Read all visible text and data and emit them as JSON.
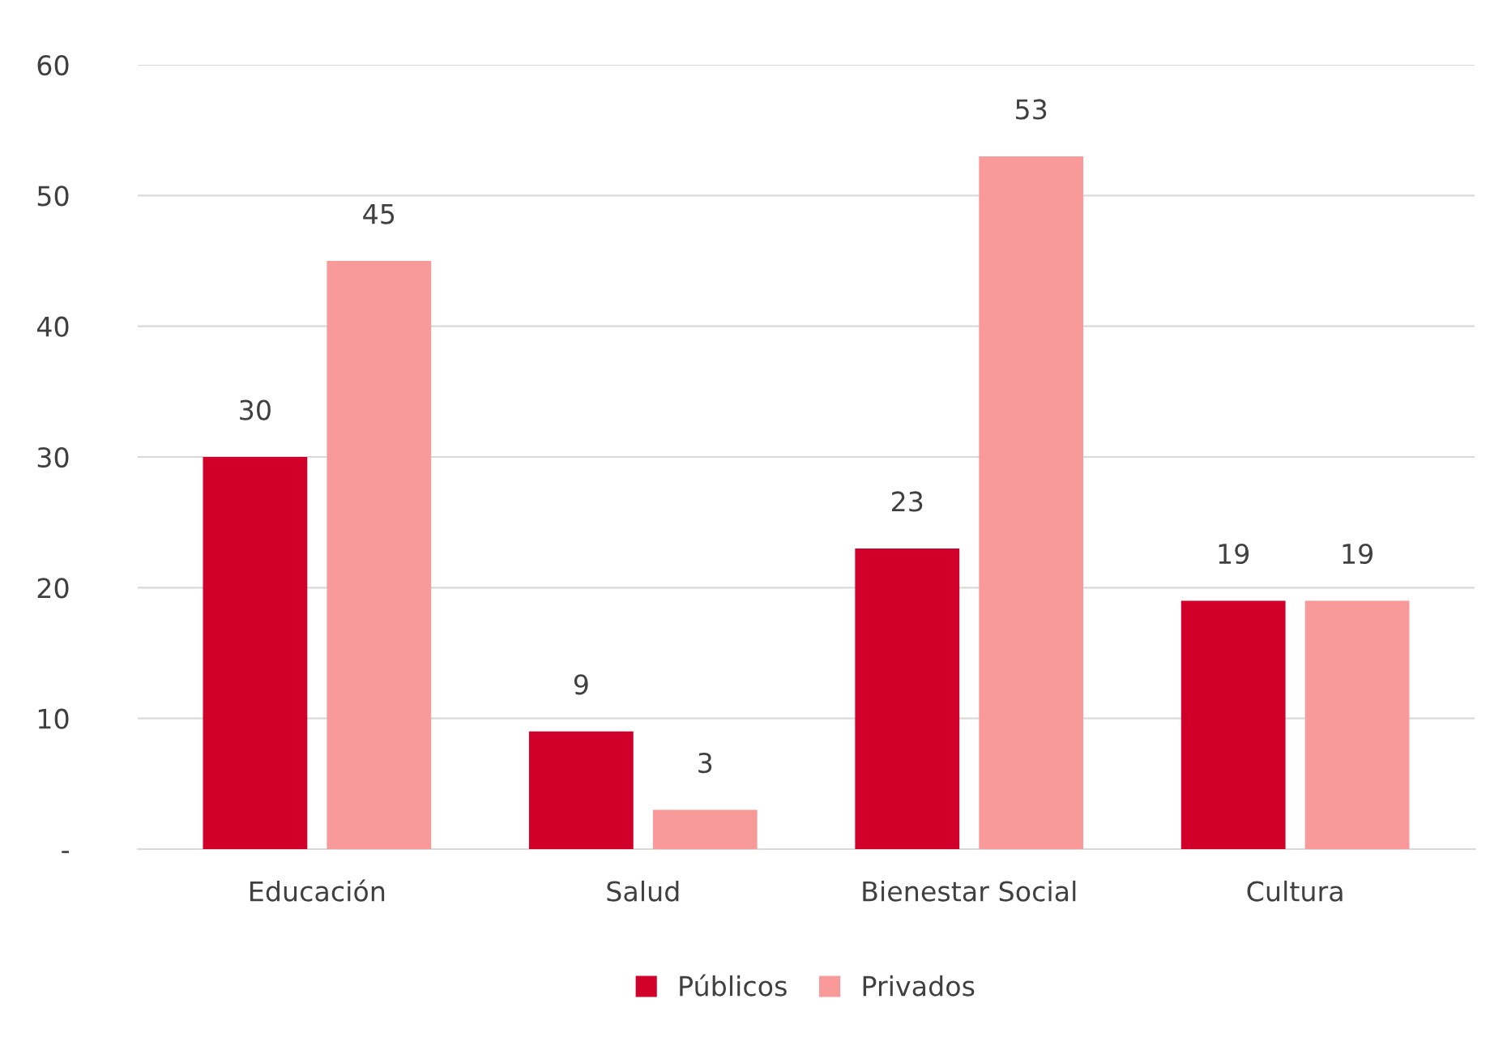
{
  "chart_data": {
    "type": "bar",
    "categories": [
      "Educación",
      "Salud",
      "Bienestar Social",
      "Cultura"
    ],
    "series": [
      {
        "name": "Públicos",
        "color": "#d0002b",
        "values": [
          30,
          9,
          23,
          19
        ]
      },
      {
        "name": "Privados",
        "color": "#f99a9a",
        "values": [
          45,
          3,
          53,
          19
        ]
      }
    ],
    "ylim": [
      0,
      60
    ],
    "yticks": [
      {
        "value": 0,
        "label": "-"
      },
      10,
      20,
      30,
      40,
      50,
      60
    ],
    "grid": "y",
    "legend": "bottom",
    "data_labels": true
  }
}
